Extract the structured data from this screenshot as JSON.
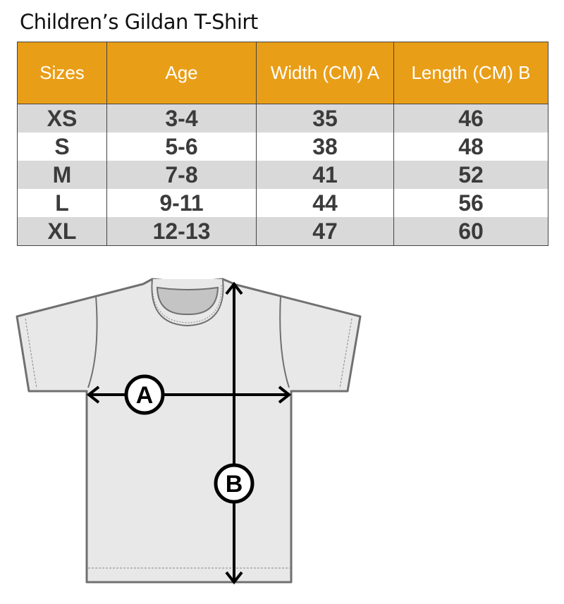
{
  "title": "Children’s Gildan T-Shirt",
  "table": {
    "headers": [
      "Sizes",
      "Age",
      "Width (CM) A",
      "Length  (CM) B"
    ],
    "rows": [
      [
        "XS",
        "3-4",
        "35",
        "46"
      ],
      [
        "S",
        "5-6",
        "38",
        "48"
      ],
      [
        "M",
        "7-8",
        "41",
        "52"
      ],
      [
        "L",
        "9-11",
        "44",
        "56"
      ],
      [
        "XL",
        "12-13",
        "47",
        "60"
      ]
    ]
  },
  "diagram": {
    "label_a": "A",
    "label_b": "B"
  },
  "colors": {
    "header": "#E99E17",
    "stripe": "#d9d9d9",
    "shirt": "#e8e8e8"
  }
}
